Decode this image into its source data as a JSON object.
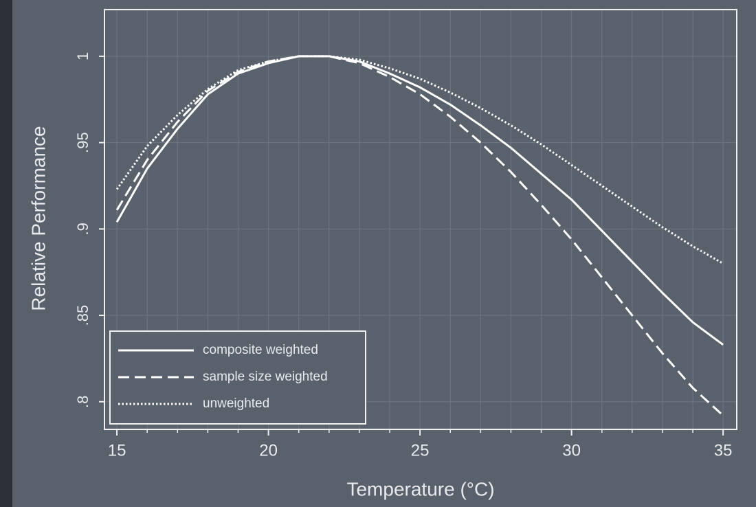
{
  "chart_data": {
    "type": "line",
    "x_label": "Temperature (°C)",
    "y_label": "Relative Performance",
    "x": [
      15,
      16,
      17,
      18,
      19,
      20,
      21,
      22,
      23,
      24,
      25,
      26,
      27,
      28,
      29,
      30,
      31,
      32,
      33,
      34,
      35
    ],
    "series": [
      {
        "name": "composite weighted",
        "color": "#ffffff",
        "style": "solid",
        "values": [
          0.904,
          0.935,
          0.958,
          0.978,
          0.99,
          0.996,
          1.0,
          1.0,
          0.997,
          0.99,
          0.982,
          0.972,
          0.96,
          0.947,
          0.932,
          0.917,
          0.899,
          0.881,
          0.863,
          0.846,
          0.833
        ]
      },
      {
        "name": "sample size weighted",
        "color": "#ffffff",
        "style": "dashed",
        "values": [
          0.911,
          0.94,
          0.962,
          0.98,
          0.991,
          0.997,
          1.0,
          1.0,
          0.996,
          0.988,
          0.978,
          0.965,
          0.95,
          0.933,
          0.914,
          0.894,
          0.872,
          0.85,
          0.828,
          0.808,
          0.792
        ]
      },
      {
        "name": "unweighted",
        "color": "#ffffff",
        "style": "dotted",
        "values": [
          0.923,
          0.948,
          0.966,
          0.981,
          0.992,
          0.997,
          1.0,
          1.0,
          0.998,
          0.993,
          0.987,
          0.979,
          0.97,
          0.96,
          0.949,
          0.937,
          0.925,
          0.913,
          0.901,
          0.89,
          0.88
        ]
      }
    ],
    "xlim": [
      14.59,
      35.45
    ],
    "ylim": [
      0.784,
      1.027
    ],
    "xticks": [
      15,
      20,
      25,
      30,
      35
    ],
    "xminorticks": [
      16,
      17,
      18,
      19,
      21,
      22,
      23,
      24,
      26,
      27,
      28,
      29,
      31,
      32,
      33,
      34
    ],
    "yticks": [
      {
        "value": 0.8,
        "label": ".8"
      },
      {
        "value": 0.85,
        "label": ".85"
      },
      {
        "value": 0.9,
        "label": ".9"
      },
      {
        "value": 0.95,
        "label": ".95"
      },
      1
    ],
    "grid": true,
    "legend": "lower left"
  }
}
